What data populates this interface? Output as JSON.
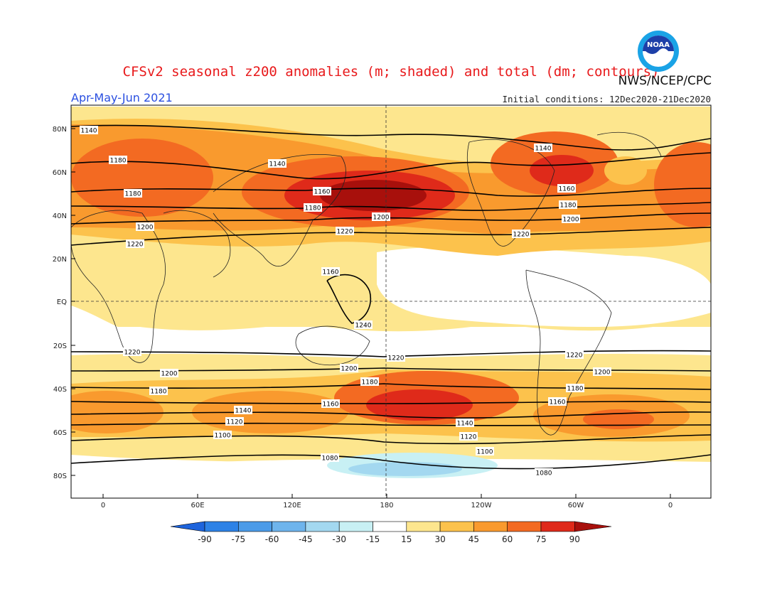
{
  "title": "CFSv2 seasonal z200 anomalies (m; shaded) and total (dm; contours)",
  "period": "Apr-May-Jun 2021",
  "agency": "NWS/NCEP/CPC",
  "initial_conditions": "Initial conditions: 12Dec2020-21Dec2020",
  "logo_text": "NOAA",
  "lat_ticks": [
    "80N",
    "60N",
    "40N",
    "20N",
    "EQ",
    "20S",
    "40S",
    "60S",
    "80S"
  ],
  "lon_ticks": [
    "0",
    "60E",
    "120E",
    "180",
    "120W",
    "60W",
    "0"
  ],
  "colorbar": {
    "labels": [
      "-90",
      "-75",
      "-60",
      "-45",
      "-30",
      "-15",
      "15",
      "30",
      "45",
      "60",
      "75",
      "90"
    ],
    "colors": [
      "#1e64dc",
      "#2d82e6",
      "#4b9be8",
      "#6eb4ec",
      "#a3d8f0",
      "#c8f0f4",
      "#ffffff",
      "#fde68e",
      "#fcc24c",
      "#f99a2e",
      "#f36a22",
      "#df2a1a",
      "#a8100c"
    ]
  },
  "contour_labels": [
    {
      "text": "1140"
    },
    {
      "text": "1140"
    },
    {
      "text": "1140"
    },
    {
      "text": "1160"
    },
    {
      "text": "1160"
    },
    {
      "text": "1160"
    },
    {
      "text": "1180"
    },
    {
      "text": "1180"
    },
    {
      "text": "1180"
    },
    {
      "text": "1180"
    },
    {
      "text": "1200"
    },
    {
      "text": "1200"
    },
    {
      "text": "1200"
    },
    {
      "text": "1220"
    },
    {
      "text": "1220"
    },
    {
      "text": "1220"
    },
    {
      "text": "1240"
    },
    {
      "text": "1220"
    },
    {
      "text": "1220"
    },
    {
      "text": "1220"
    },
    {
      "text": "1200"
    },
    {
      "text": "1200"
    },
    {
      "text": "1200"
    },
    {
      "text": "1180"
    },
    {
      "text": "1180"
    },
    {
      "text": "1180"
    },
    {
      "text": "1160"
    },
    {
      "text": "1160"
    },
    {
      "text": "1140"
    },
    {
      "text": "1140"
    },
    {
      "text": "1120"
    },
    {
      "text": "1120"
    },
    {
      "text": "1100"
    },
    {
      "text": "1100"
    },
    {
      "text": "1080"
    },
    {
      "text": "1080"
    }
  ]
}
